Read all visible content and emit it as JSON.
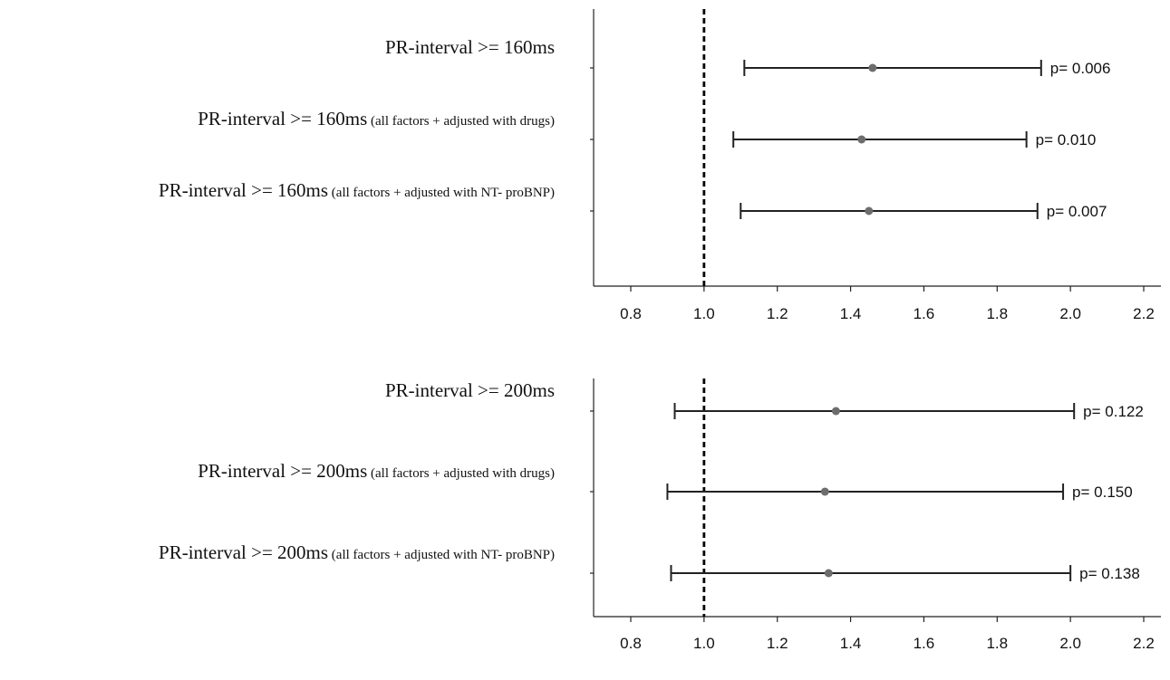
{
  "chart_data": [
    {
      "type": "forest",
      "x_ticks": [
        0.8,
        1.0,
        1.2,
        1.4,
        1.6,
        1.8,
        2.0,
        2.2
      ],
      "xlim": [
        0.74,
        2.27
      ],
      "reference_line": 1.0,
      "rows": [
        {
          "label": "PR-interval >= 160ms",
          "note": "",
          "estimate": 1.46,
          "lower": 1.11,
          "upper": 1.92,
          "p_label": "p= 0.006"
        },
        {
          "label": "PR-interval >= 160ms",
          "note": "(all factors + adjusted with drugs)",
          "estimate": 1.43,
          "lower": 1.08,
          "upper": 1.88,
          "p_label": "p= 0.010"
        },
        {
          "label": "PR-interval >= 160ms",
          "note": "(all factors + adjusted with NT- proBNP)",
          "estimate": 1.45,
          "lower": 1.1,
          "upper": 1.91,
          "p_label": "p= 0.007"
        }
      ]
    },
    {
      "type": "forest",
      "x_ticks": [
        0.8,
        1.0,
        1.2,
        1.4,
        1.6,
        1.8,
        2.0,
        2.2
      ],
      "xlim": [
        0.74,
        2.27
      ],
      "reference_line": 1.0,
      "rows": [
        {
          "label": "PR-interval >= 200ms",
          "note": "",
          "estimate": 1.36,
          "lower": 0.92,
          "upper": 2.01,
          "p_label": "p= 0.122"
        },
        {
          "label": "PR-interval >= 200ms",
          "note": "(all factors + adjusted with drugs)",
          "estimate": 1.33,
          "lower": 0.9,
          "upper": 1.98,
          "p_label": "p= 0.150"
        },
        {
          "label": "PR-interval >= 200ms",
          "note": "(all factors + adjusted with NT- proBNP)",
          "estimate": 1.34,
          "lower": 0.91,
          "upper": 2.0,
          "p_label": "p= 0.138"
        }
      ]
    }
  ]
}
